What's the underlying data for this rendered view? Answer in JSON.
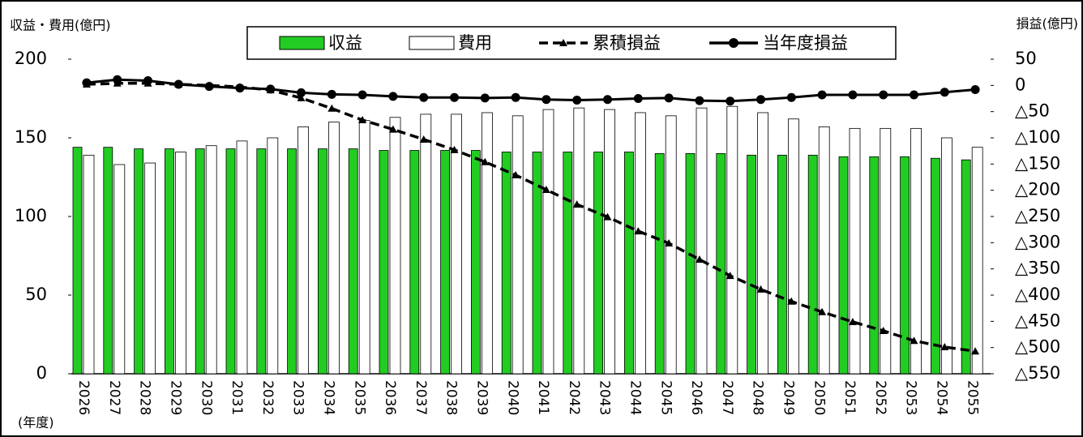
{
  "chart_data": {
    "type": "bar_line",
    "y_label": "収益・費用(億円)",
    "y2_label": "損益(億円)",
    "x_label": "(年度)",
    "categories": [
      "2026",
      "2027",
      "2028",
      "2029",
      "2030",
      "2031",
      "2032",
      "2033",
      "2034",
      "2035",
      "2036",
      "2037",
      "2038",
      "2039",
      "2040",
      "2041",
      "2042",
      "2043",
      "2044",
      "2045",
      "2046",
      "2047",
      "2048",
      "2049",
      "2050",
      "2051",
      "2052",
      "2053",
      "2054",
      "2055"
    ],
    "series": [
      {
        "name": "収益",
        "type": "bar",
        "color": "#22cc22",
        "values": [
          144,
          144,
          143,
          143,
          143,
          143,
          143,
          143,
          143,
          143,
          142,
          142,
          142,
          142,
          141,
          141,
          141,
          141,
          141,
          140,
          140,
          140,
          139,
          139,
          139,
          138,
          138,
          138,
          137,
          136
        ]
      },
      {
        "name": "費用",
        "type": "bar",
        "color": "#ffffff",
        "values": [
          139,
          133,
          134,
          141,
          145,
          148,
          150,
          157,
          160,
          161,
          163,
          165,
          165,
          166,
          164,
          168,
          169,
          168,
          166,
          164,
          169,
          170,
          166,
          162,
          157,
          156,
          156,
          156,
          150,
          144
        ]
      },
      {
        "name": "累積損益",
        "type": "line",
        "axis": "y2",
        "dashed": true,
        "color": "#000000",
        "values": [
          2,
          4,
          4,
          2,
          0,
          -3,
          -9,
          -24,
          -44,
          -66,
          -84,
          -103,
          -123,
          -146,
          -171,
          -199,
          -227,
          -251,
          -278,
          -301,
          -332,
          -363,
          -389,
          -412,
          -432,
          -451,
          -468,
          -487,
          -499,
          -507
        ]
      },
      {
        "name": "当年度損益",
        "type": "line",
        "axis": "y2",
        "dashed": false,
        "color": "#000000",
        "values": [
          5,
          11,
          9,
          2,
          -2,
          -5,
          -7,
          -14,
          -17,
          -18,
          -21,
          -23,
          -23,
          -24,
          -23,
          -27,
          -28,
          -27,
          -25,
          -24,
          -29,
          -30,
          -27,
          -23,
          -18,
          -18,
          -18,
          -18,
          -13,
          -8
        ]
      }
    ],
    "ylim": [
      0,
      200
    ],
    "yticks": [
      0,
      50,
      100,
      150,
      200
    ],
    "y2lim": [
      -550,
      50
    ],
    "y2ticks": [
      50,
      0,
      {
        "value": -50,
        "label": "△50"
      },
      {
        "value": -100,
        "label": "△100"
      },
      {
        "value": -150,
        "label": "△150"
      },
      {
        "value": -200,
        "label": "△200"
      },
      {
        "value": -250,
        "label": "△250"
      },
      {
        "value": -300,
        "label": "△300"
      },
      {
        "value": -350,
        "label": "△350"
      },
      {
        "value": -400,
        "label": "△400"
      },
      {
        "value": -450,
        "label": "△450"
      },
      {
        "value": -500,
        "label": "△500"
      },
      {
        "value": -550,
        "label": "△550"
      }
    ]
  }
}
